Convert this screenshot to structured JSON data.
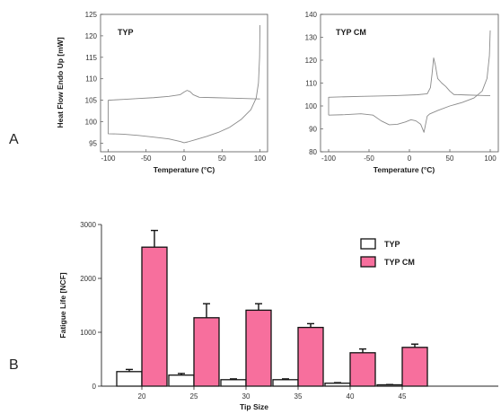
{
  "panel_labels": {
    "a": "A",
    "b": "B"
  },
  "chart_data": [
    {
      "type": "line",
      "title": "TYP",
      "xlabel": "Temperature (°C)",
      "ylabel": "Heat Flow Endo Up [mW]",
      "xlim": [
        -110,
        110
      ],
      "ylim": [
        93,
        125
      ],
      "xticks": [
        -100,
        -50,
        0,
        50,
        100
      ],
      "yticks": [
        95,
        100,
        105,
        110,
        115,
        120,
        125
      ],
      "series": [
        {
          "values": [
            [
              -100,
              105
            ],
            [
              -80,
              105.2
            ],
            [
              -60,
              105.4
            ],
            [
              -40,
              105.6
            ],
            [
              -20,
              105.9
            ],
            [
              -5,
              106.3
            ],
            [
              0,
              106.9
            ],
            [
              4,
              107.3
            ],
            [
              8,
              107.0
            ],
            [
              12,
              106.3
            ],
            [
              20,
              105.7
            ],
            [
              40,
              105.6
            ],
            [
              60,
              105.5
            ],
            [
              80,
              105.4
            ],
            [
              100,
              105.3
            ]
          ]
        },
        {
          "values": [
            [
              -100,
              105
            ],
            [
              -100,
              97.2
            ],
            [
              -80,
              97.1
            ],
            [
              -60,
              96.8
            ],
            [
              -40,
              96.4
            ],
            [
              -20,
              96.0
            ],
            [
              -5,
              95.4
            ],
            [
              0,
              95.1
            ],
            [
              5,
              95.3
            ],
            [
              15,
              95.8
            ],
            [
              30,
              96.6
            ],
            [
              45,
              97.5
            ],
            [
              60,
              98.7
            ],
            [
              75,
              100.5
            ],
            [
              88,
              102.8
            ],
            [
              95,
              105.5
            ],
            [
              98,
              109
            ],
            [
              99.5,
              115
            ],
            [
              100,
              122.5
            ]
          ]
        }
      ]
    },
    {
      "type": "line",
      "title": "TYP CM",
      "xlabel": "Temperature (°C)",
      "ylabel": "",
      "xlim": [
        -110,
        110
      ],
      "ylim": [
        80,
        140
      ],
      "xticks": [
        -100,
        -50,
        0,
        50,
        100
      ],
      "yticks": [
        80,
        90,
        100,
        110,
        120,
        130,
        140
      ],
      "series": [
        {
          "values": [
            [
              -100,
              96
            ],
            [
              -100,
              103.8
            ],
            [
              -60,
              104.2
            ],
            [
              -20,
              104.5
            ],
            [
              10,
              104.9
            ],
            [
              22,
              105.3
            ],
            [
              26,
              108
            ],
            [
              28,
              114
            ],
            [
              30,
              121
            ],
            [
              32,
              118
            ],
            [
              35,
              112
            ],
            [
              40,
              110
            ],
            [
              45,
              108.5
            ],
            [
              50,
              106.5
            ],
            [
              55,
              105
            ],
            [
              70,
              104.8
            ],
            [
              90,
              104.6
            ],
            [
              100,
              104.5
            ]
          ]
        },
        {
          "values": [
            [
              -100,
              96
            ],
            [
              -80,
              96.2
            ],
            [
              -60,
              96.6
            ],
            [
              -45,
              96.0
            ],
            [
              -35,
              93.5
            ],
            [
              -25,
              91.8
            ],
            [
              -15,
              92.0
            ],
            [
              -5,
              93.0
            ],
            [
              2,
              94.0
            ],
            [
              8,
              93.5
            ],
            [
              14,
              92.0
            ],
            [
              18,
              88.5
            ],
            [
              22,
              95.5
            ],
            [
              25,
              96.5
            ],
            [
              35,
              98.0
            ],
            [
              50,
              100.0
            ],
            [
              65,
              101.5
            ],
            [
              80,
              103.5
            ],
            [
              90,
              106.5
            ],
            [
              96,
              112
            ],
            [
              99,
              122
            ],
            [
              100,
              133
            ]
          ]
        }
      ]
    },
    {
      "type": "bar",
      "title": "",
      "xlabel": "Tip Size",
      "ylabel": "Fatigue Life [NCF]",
      "categories": [
        "20",
        "25",
        "30",
        "35",
        "40",
        "45"
      ],
      "ylim": [
        0,
        3000
      ],
      "yticks": [
        0,
        1000,
        2000,
        3000
      ],
      "series": [
        {
          "name": "TYP",
          "color": "#ffffff",
          "values": [
            270,
            205,
            120,
            120,
            55,
            25
          ],
          "errors": [
            40,
            30,
            15,
            15,
            10,
            5
          ]
        },
        {
          "name": "TYP CM",
          "color": "#f76f9d",
          "values": [
            2580,
            1270,
            1410,
            1090,
            620,
            720
          ],
          "errors": [
            310,
            260,
            120,
            70,
            70,
            60
          ]
        }
      ],
      "legend": "top-right"
    }
  ]
}
